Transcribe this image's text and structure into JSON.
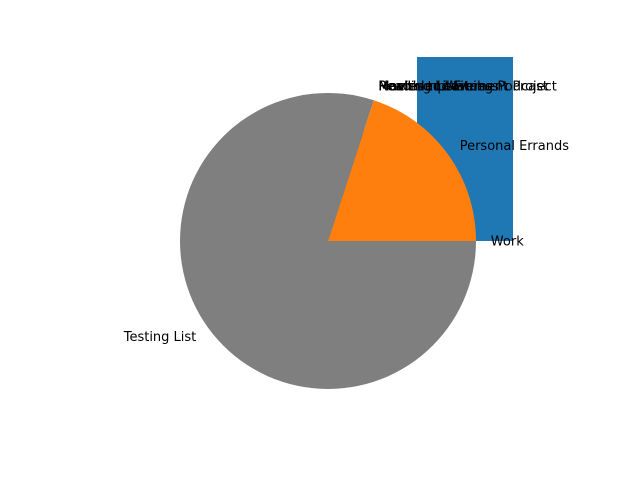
{
  "chart_data": {
    "type": "pie",
    "title": "",
    "slices": [
      {
        "label": "Work",
        "value": 0,
        "color": "#1f77b4"
      },
      {
        "label": "Personal Errands",
        "value": 1,
        "color": "#ff7f0e"
      },
      {
        "label": "Health and Fitness",
        "value": 0,
        "color": "#2ca02c"
      },
      {
        "label": "Home Improvement Project",
        "value": 0,
        "color": "#d62728"
      },
      {
        "label": "Reading List",
        "value": 0,
        "color": "#9467bd"
      },
      {
        "label": "Machine Learning Podcast",
        "value": 0,
        "color": "#8c564b"
      },
      {
        "label": "Movies to Watch",
        "value": 0,
        "color": "#e377c2"
      },
      {
        "label": "Testing List",
        "value": 4,
        "color": "#7f7f7f"
      }
    ],
    "background_bars": {
      "color": "#1f77b4",
      "categories": [
        "",
        ""
      ],
      "values": [
        0.6,
        1.0
      ]
    }
  }
}
